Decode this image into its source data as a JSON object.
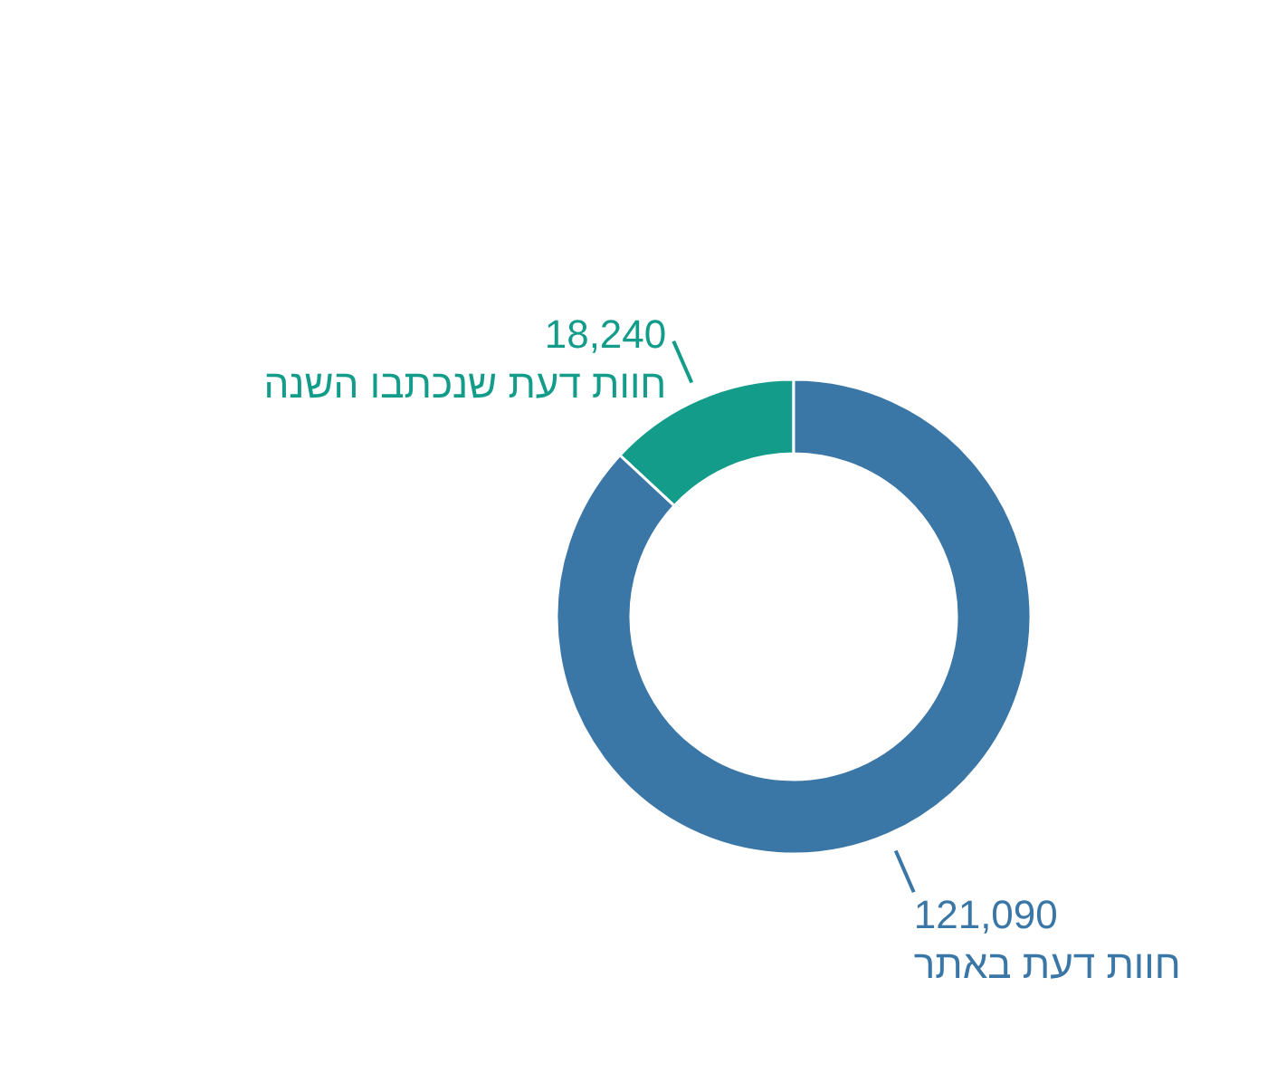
{
  "chart_data": {
    "type": "donut",
    "categories": [
      "חוות דעת שנכתבו השנה",
      "חוות דעת באתר"
    ],
    "values": [
      18240,
      121090
    ],
    "colors": [
      "#139c8a",
      "#3a76a6"
    ],
    "value_labels": [
      "18,240",
      "121,090"
    ]
  }
}
